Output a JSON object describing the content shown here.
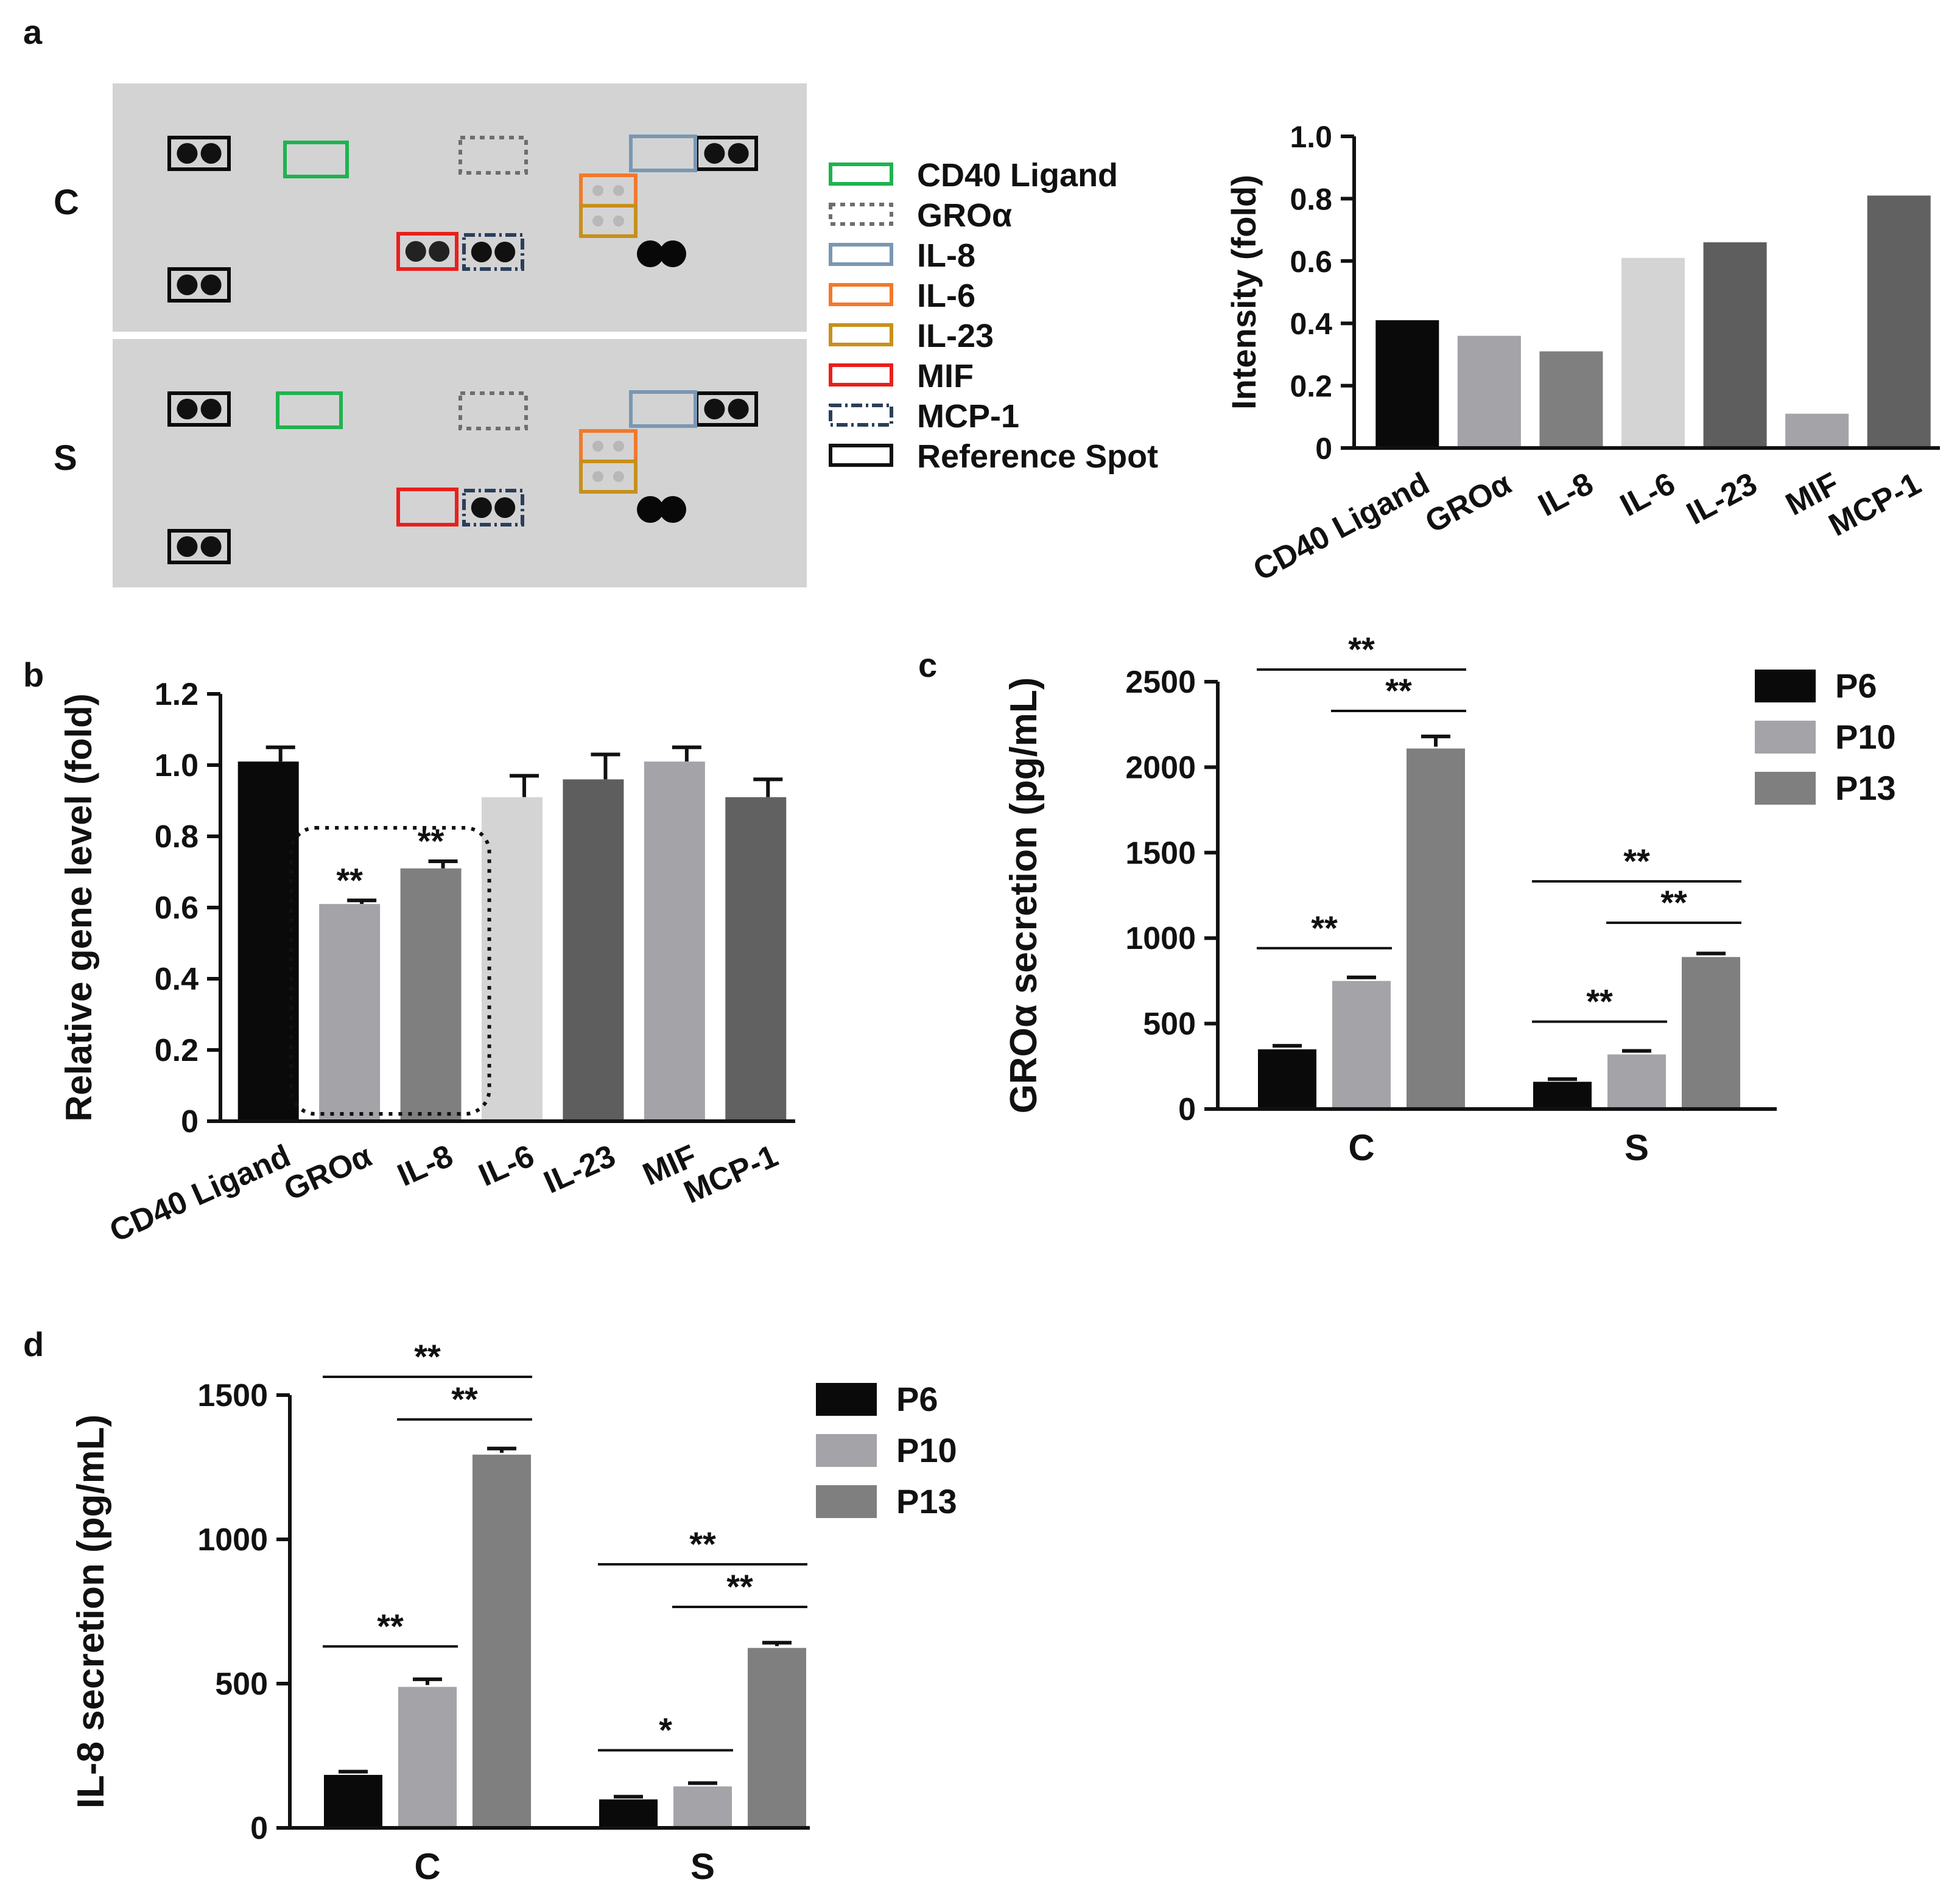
{
  "colors": {
    "black": "#0a0a0a",
    "gray_light": "#a3a3a8",
    "gray_mid": "#7f7f7f",
    "gray_pale": "#d4d4d4",
    "gray_dark": "#5e5e5e",
    "gray_dark2": "#616161",
    "membrane": "#d3d3d3",
    "green": "#1fb34f",
    "gray_dash": "#6e6e6e",
    "blue_gray": "#7a97b3",
    "orange": "#f2792b",
    "gold": "#c8901a",
    "red": "#e8201c",
    "navy": "#2b3f5a"
  },
  "panel_a": {
    "panel_label": "a",
    "row_labels": [
      "C",
      "S"
    ],
    "legend": [
      {
        "label": "CD40 Ligand",
        "color": "#1fb34f",
        "style": "solid"
      },
      {
        "label": "GROα",
        "color": "#6e6e6e",
        "style": "dotted"
      },
      {
        "label": "IL-8",
        "color": "#7a97b3",
        "style": "solid"
      },
      {
        "label": "IL-6",
        "color": "#f2792b",
        "style": "solid"
      },
      {
        "label": "IL-23",
        "color": "#c8901a",
        "style": "solid"
      },
      {
        "label": "MIF",
        "color": "#e8201c",
        "style": "solid"
      },
      {
        "label": "MCP-1",
        "color": "#2b3f5a",
        "style": "dashdot"
      },
      {
        "label": "Reference Spot",
        "color": "#111111",
        "style": "solid"
      }
    ],
    "blot_description_icon": "dot-blot-membrane-icon"
  },
  "chart_data": [
    {
      "id": "a",
      "type": "bar",
      "title": "",
      "xlabel": "",
      "ylabel": "Intensity (fold)",
      "ylim": [
        0,
        1.0
      ],
      "yticks": [
        "0",
        "0.2",
        "0.4",
        "0.6",
        "0.8",
        "1.0"
      ],
      "categories": [
        "CD40 Ligand",
        "GROα",
        "IL-8",
        "IL-6",
        "IL-23",
        "MIF",
        "MCP-1"
      ],
      "values": [
        0.41,
        0.36,
        0.31,
        0.61,
        0.66,
        0.11,
        0.81
      ],
      "bar_colors": [
        "#0a0a0a",
        "#a3a3a8",
        "#7f7f7f",
        "#d4d4d4",
        "#5e5e5e",
        "#a3a3a8",
        "#616161"
      ]
    },
    {
      "id": "b",
      "type": "bar",
      "panel_label": "b",
      "title": "",
      "xlabel": "",
      "ylabel": "Relative gene level (fold)",
      "ylim": [
        0,
        1.2
      ],
      "yticks": [
        "0",
        "0.2",
        "0.4",
        "0.6",
        "0.8",
        "1.0",
        "1.2"
      ],
      "categories": [
        "CD40 Ligand",
        "GROα",
        "IL-8",
        "IL-6",
        "IL-23",
        "MIF",
        "MCP-1"
      ],
      "values": [
        1.01,
        0.61,
        0.71,
        0.91,
        0.96,
        1.01,
        0.91
      ],
      "errors": [
        0.04,
        0.01,
        0.02,
        0.06,
        0.07,
        0.04,
        0.05
      ],
      "significance": [
        "",
        "**",
        "**",
        "",
        "",
        "",
        ""
      ],
      "highlight_group": [
        "GROα",
        "IL-8"
      ],
      "bar_colors": [
        "#0a0a0a",
        "#a3a3a8",
        "#7f7f7f",
        "#d4d4d4",
        "#5e5e5e",
        "#a3a3a8",
        "#616161"
      ]
    },
    {
      "id": "c",
      "type": "bar",
      "panel_label": "c",
      "title": "",
      "xlabel": "",
      "ylabel": "GROα secretion  (pg/mL)",
      "ylim": [
        0,
        2500
      ],
      "yticks": [
        "0",
        "500",
        "1000",
        "1500",
        "2000",
        "2500"
      ],
      "categories": [
        "C",
        "S"
      ],
      "series": [
        {
          "name": "P6",
          "color": "#0a0a0a",
          "values": [
            360,
            170
          ],
          "errors": [
            10,
            5
          ]
        },
        {
          "name": "P10",
          "color": "#a3a3a8",
          "values": [
            760,
            330
          ],
          "errors": [
            10,
            10
          ]
        },
        {
          "name": "P13",
          "color": "#7f7f7f",
          "values": [
            2120,
            900
          ],
          "errors": [
            60,
            10
          ]
        }
      ],
      "brackets": [
        {
          "group": 0,
          "from": 0,
          "to": 1,
          "label": "**"
        },
        {
          "group": 0,
          "from": 0,
          "to": 2,
          "label": "**"
        },
        {
          "group": 0,
          "from": 1,
          "to": 2,
          "label": "**"
        },
        {
          "group": 1,
          "from": 0,
          "to": 1,
          "label": "**"
        },
        {
          "group": 1,
          "from": 0,
          "to": 2,
          "label": "**"
        },
        {
          "group": 1,
          "from": 1,
          "to": 2,
          "label": "**"
        }
      ]
    },
    {
      "id": "d",
      "type": "bar",
      "panel_label": "d",
      "title": "",
      "xlabel": "",
      "ylabel": "IL-8 secretion (pg/mL)",
      "ylim": [
        0,
        1500
      ],
      "yticks": [
        "0",
        "500",
        "1000",
        "1500"
      ],
      "categories": [
        "C",
        "S"
      ],
      "series": [
        {
          "name": "P6",
          "color": "#0a0a0a",
          "values": [
            190,
            105
          ],
          "errors": [
            5,
            3
          ]
        },
        {
          "name": "P10",
          "color": "#a3a3a8",
          "values": [
            495,
            150
          ],
          "errors": [
            20,
            5
          ]
        },
        {
          "name": "P13",
          "color": "#7f7f7f",
          "values": [
            1300,
            630
          ],
          "errors": [
            15,
            12
          ]
        }
      ],
      "brackets": [
        {
          "group": 0,
          "from": 0,
          "to": 1,
          "label": "**"
        },
        {
          "group": 0,
          "from": 0,
          "to": 2,
          "label": "**"
        },
        {
          "group": 0,
          "from": 1,
          "to": 2,
          "label": "**"
        },
        {
          "group": 1,
          "from": 0,
          "to": 1,
          "label": "*"
        },
        {
          "group": 1,
          "from": 0,
          "to": 2,
          "label": "**"
        },
        {
          "group": 1,
          "from": 1,
          "to": 2,
          "label": "**"
        }
      ]
    }
  ]
}
